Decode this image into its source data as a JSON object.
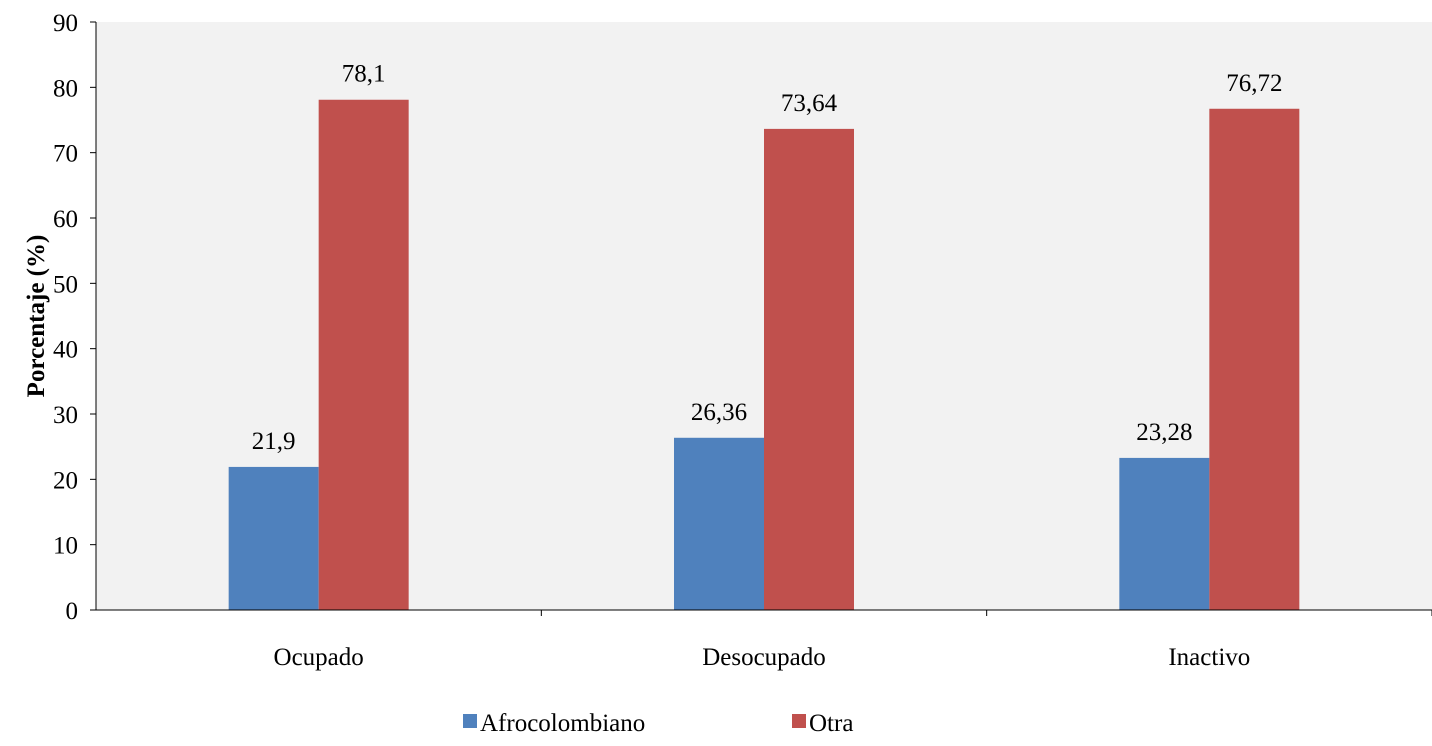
{
  "chart_data": {
    "type": "bar",
    "title": "",
    "xlabel": "",
    "ylabel": "Porcentaje (%)",
    "ylim": [
      0,
      90
    ],
    "yticks": [
      0,
      10,
      20,
      30,
      40,
      50,
      60,
      70,
      80,
      90
    ],
    "categories": [
      "Ocupado",
      "Desocupado",
      "Inactivo"
    ],
    "grid": false,
    "legend_position": "bottom",
    "series": [
      {
        "name": "Afrocolombiano",
        "color": "#4F81BD",
        "values": [
          21.9,
          26.36,
          23.28
        ],
        "labels": [
          "21,9",
          "26,36",
          "23,28"
        ]
      },
      {
        "name": "Otra",
        "color": "#C0504D",
        "values": [
          78.1,
          73.64,
          76.72
        ],
        "labels": [
          "78,1",
          "73,64",
          "76,72"
        ]
      }
    ],
    "plot_background": "#F2F2F2"
  }
}
